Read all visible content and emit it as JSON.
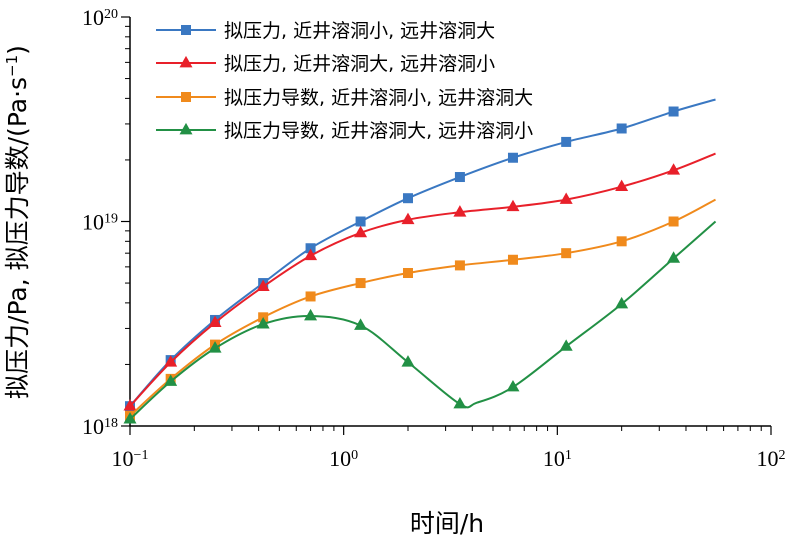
{
  "chart_data": {
    "type": "line",
    "title": "",
    "xlabel": "时间/h",
    "ylabel": "拟压力/Pa, 拟压力导数/(Pa·s⁻¹)",
    "ylabel_parts": {
      "main": "拟压力/Pa, 拟压力导数/(Pa·s",
      "sup": "−1",
      "close": ")"
    },
    "x_scale": "log",
    "y_scale": "log",
    "xlim": [
      0.1,
      100
    ],
    "ylim": [
      1e+18,
      1e+20
    ],
    "x_ticks": [
      {
        "value": 0.1,
        "base": "10",
        "exp": "−1"
      },
      {
        "value": 1,
        "base": "10",
        "exp": "0"
      },
      {
        "value": 10,
        "base": "10",
        "exp": "1"
      },
      {
        "value": 100,
        "base": "10",
        "exp": "2"
      }
    ],
    "y_ticks": [
      {
        "value": 1e+18,
        "base": "10",
        "exp": "18"
      },
      {
        "value": 1e+19,
        "base": "10",
        "exp": "19"
      },
      {
        "value": 1e+20,
        "base": "10",
        "exp": "20"
      }
    ],
    "grid": false,
    "legend_position": "top-center",
    "series": [
      {
        "name": "拟压力, 近井溶洞小, 远井溶洞大",
        "color": "#3a78c2",
        "marker": "square",
        "x": [
          0.1,
          0.155,
          0.25,
          0.42,
          0.7,
          1.2,
          2.0,
          3.5,
          6.2,
          11,
          20,
          35,
          55
        ],
        "y": [
          1.25e+18,
          2.1e+18,
          3.3e+18,
          5e+18,
          7.4e+18,
          1e+19,
          1.3e+19,
          1.65e+19,
          2.05e+19,
          2.45e+19,
          2.85e+19,
          3.45e+19,
          3.95e+19
        ],
        "markers": [
          0.1,
          0.155,
          0.25,
          0.42,
          0.7,
          1.2,
          2.0,
          3.5,
          6.2,
          11,
          20,
          35
        ]
      },
      {
        "name": "拟压力, 近井溶洞大, 远井溶洞小",
        "color": "#e8202a",
        "marker": "triangle",
        "x": [
          0.1,
          0.155,
          0.25,
          0.42,
          0.7,
          1.2,
          2.0,
          3.5,
          6.2,
          11,
          20,
          35,
          55
        ],
        "y": [
          1.25e+18,
          2.05e+18,
          3.2e+18,
          4.8e+18,
          6.8e+18,
          8.8e+18,
          1.02e+19,
          1.11e+19,
          1.18e+19,
          1.28e+19,
          1.48e+19,
          1.78e+19,
          2.15e+19
        ],
        "markers": [
          0.1,
          0.155,
          0.25,
          0.42,
          0.7,
          1.2,
          2.0,
          3.5,
          6.2,
          11,
          20,
          35
        ]
      },
      {
        "name": "拟压力导数, 近井溶洞小, 远井溶洞大",
        "color": "#f08a1c",
        "marker": "square",
        "x": [
          0.1,
          0.155,
          0.25,
          0.42,
          0.7,
          1.2,
          2.0,
          3.5,
          6.2,
          11,
          20,
          35,
          55
        ],
        "y": [
          1.12e+18,
          1.7e+18,
          2.5e+18,
          3.4e+18,
          4.3e+18,
          5e+18,
          5.6e+18,
          6.1e+18,
          6.5e+18,
          7e+18,
          8e+18,
          1e+19,
          1.28e+19
        ],
        "markers": [
          0.1,
          0.155,
          0.25,
          0.42,
          0.7,
          1.2,
          2.0,
          3.5,
          6.2,
          11,
          20,
          35
        ]
      },
      {
        "name": "拟压力导数, 近井溶洞大, 远井溶洞小",
        "color": "#229045",
        "marker": "triangle",
        "x": [
          0.1,
          0.155,
          0.25,
          0.42,
          0.7,
          1.2,
          2.0,
          3.5,
          4.2,
          6.2,
          11,
          20,
          35,
          55
        ],
        "y": [
          1.08e+18,
          1.65e+18,
          2.4e+18,
          3.15e+18,
          3.45e+18,
          3.1e+18,
          2.05e+18,
          1.28e+18,
          1.3e+18,
          1.55e+18,
          2.45e+18,
          3.95e+18,
          6.6e+18,
          1e+19
        ],
        "markers": [
          0.1,
          0.155,
          0.25,
          0.42,
          0.7,
          1.2,
          2.0,
          3.5,
          6.2,
          11,
          20,
          35
        ]
      }
    ]
  }
}
